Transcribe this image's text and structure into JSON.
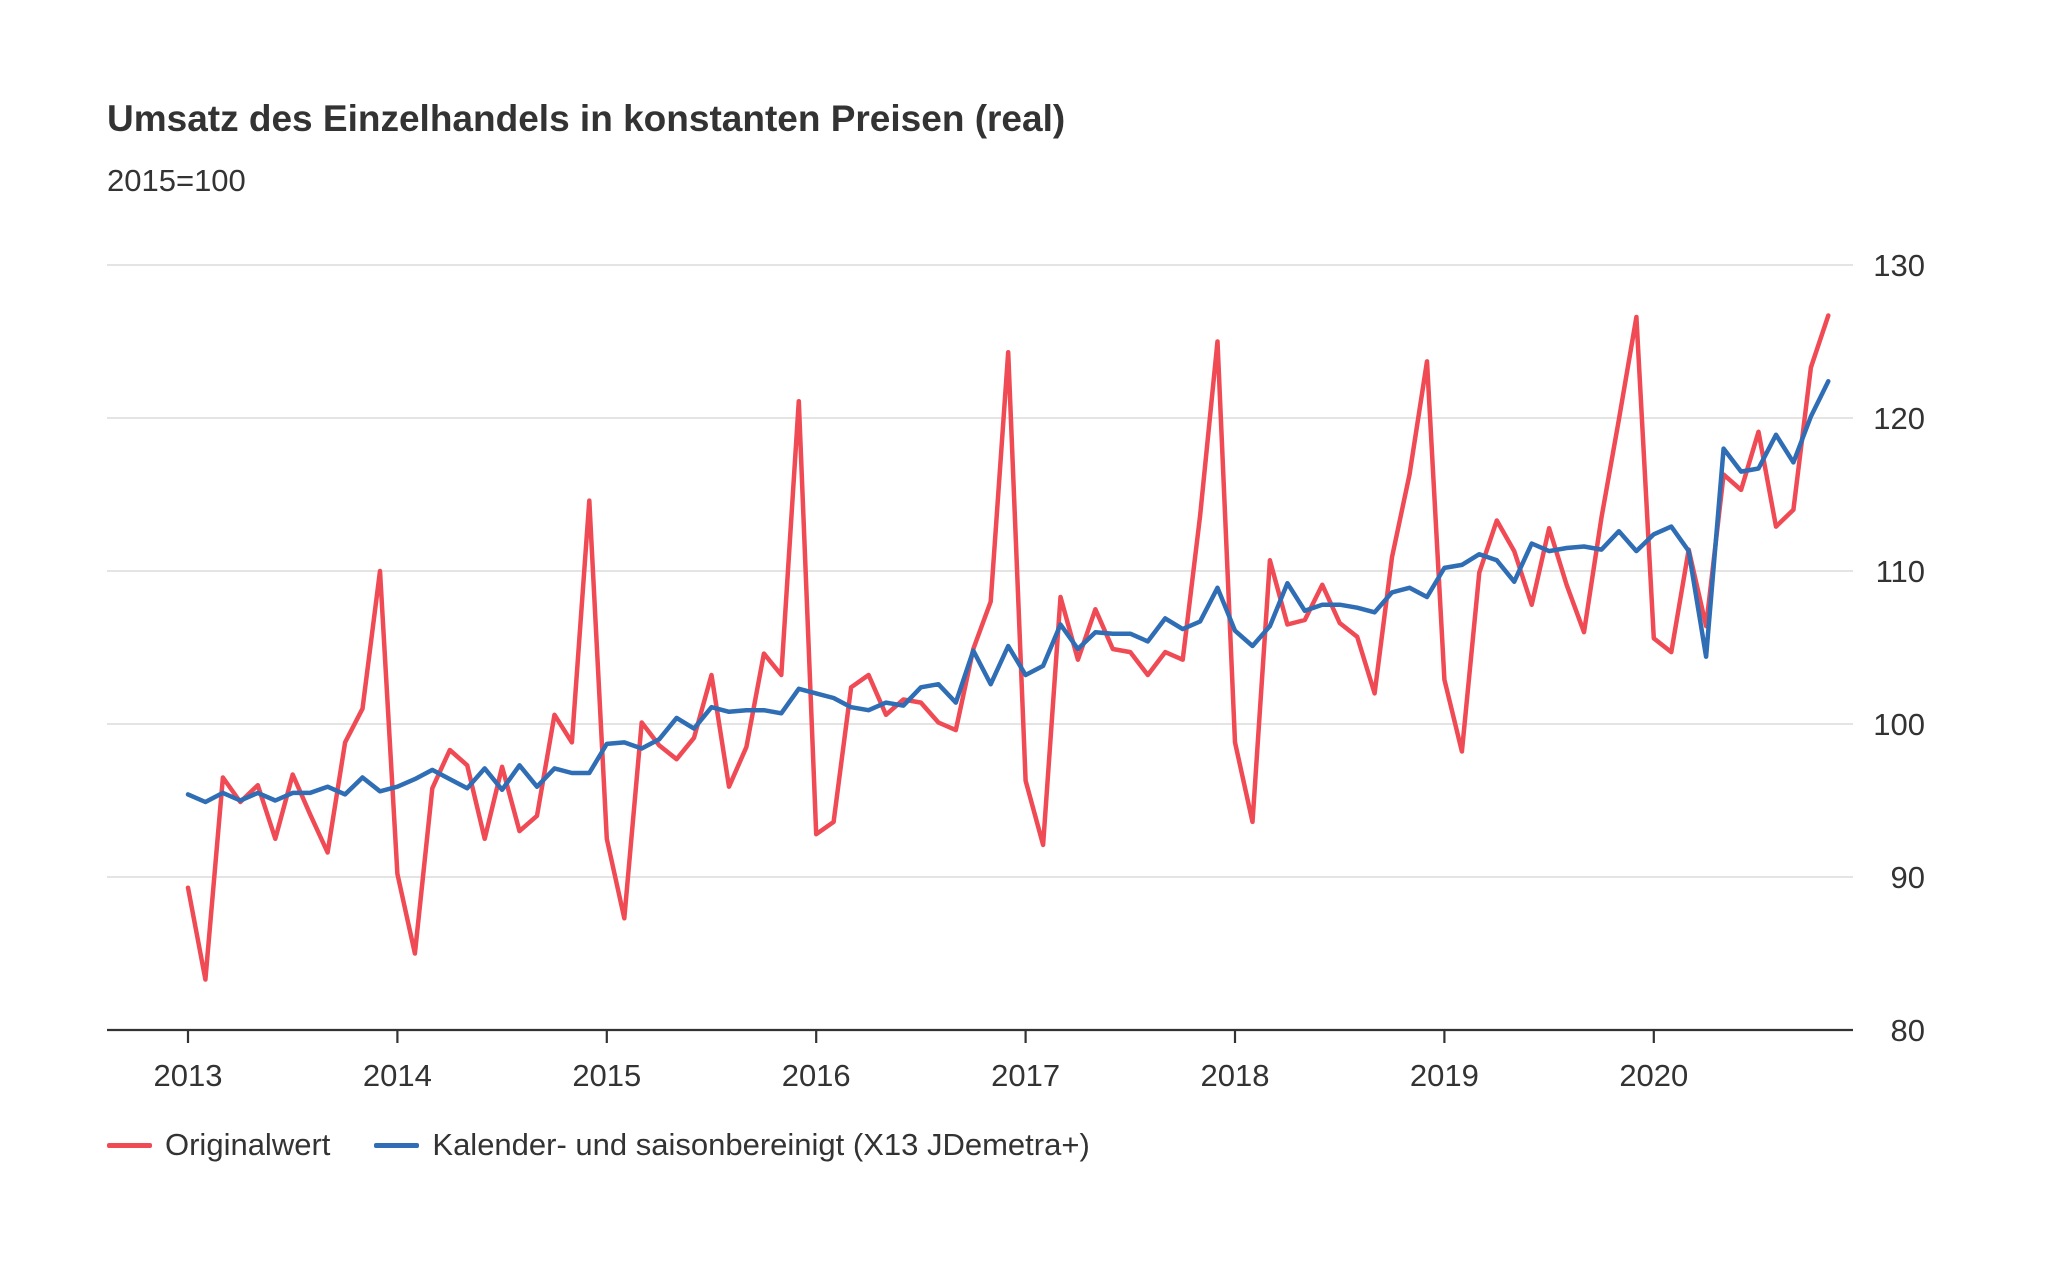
{
  "chart_data": {
    "type": "line",
    "title": "Umsatz des Einzelhandels in konstanten Preisen (real)",
    "subtitle": "2015=100",
    "xlabel": "",
    "ylabel": "",
    "ylim": [
      80,
      130
    ],
    "y_ticks": [
      "80",
      "90",
      "100",
      "110",
      "120",
      "130"
    ],
    "x_ticks": [
      "2013",
      "2014",
      "2015",
      "2016",
      "2017",
      "2018",
      "2019",
      "2020"
    ],
    "x_start": "2013-01",
    "x_end": "2020-11",
    "grid": "horizontal",
    "y_axis_position": "right",
    "legend_placement": "bottom-left",
    "series": [
      {
        "name": "Originalwert",
        "color": "#f04a55",
        "values": [
          89.3,
          83.3,
          96.5,
          94.9,
          96.0,
          92.5,
          96.7,
          94.1,
          91.6,
          98.8,
          101.0,
          110.0,
          90.2,
          85.0,
          95.8,
          98.3,
          97.3,
          92.5,
          97.2,
          93.0,
          94.0,
          100.6,
          98.8,
          114.6,
          92.5,
          87.3,
          100.1,
          98.6,
          97.7,
          99.1,
          103.2,
          95.9,
          98.5,
          104.6,
          103.2,
          121.1,
          92.8,
          93.6,
          102.4,
          103.2,
          100.6,
          101.6,
          101.4,
          100.1,
          99.6,
          104.9,
          108.0,
          124.3,
          96.3,
          92.1,
          108.3,
          104.2,
          107.5,
          104.9,
          104.7,
          103.2,
          104.7,
          104.2,
          113.6,
          125.0,
          98.8,
          93.6,
          110.7,
          106.5,
          106.8,
          109.1,
          106.6,
          105.7,
          102.0,
          110.9,
          116.3,
          123.7,
          102.9,
          98.2,
          109.9,
          113.3,
          111.3,
          107.8,
          112.8,
          109.1,
          106.0,
          113.5,
          119.9,
          126.6,
          105.6,
          104.7,
          111.4,
          106.4,
          116.3,
          115.3,
          119.1,
          112.9,
          114.0,
          123.3,
          126.7
        ]
      },
      {
        "name": "Kalender- und saisonbereinigt (X13 JDemetra+)",
        "color": "#2f6db5",
        "values": [
          95.4,
          94.9,
          95.5,
          95.0,
          95.5,
          95.0,
          95.5,
          95.5,
          95.9,
          95.4,
          96.5,
          95.6,
          95.9,
          96.4,
          97.0,
          96.4,
          95.8,
          97.1,
          95.7,
          97.3,
          95.9,
          97.1,
          96.8,
          96.8,
          98.7,
          98.8,
          98.4,
          99.0,
          100.4,
          99.7,
          101.1,
          100.8,
          100.9,
          100.9,
          100.7,
          102.3,
          102.0,
          101.7,
          101.1,
          100.9,
          101.4,
          101.2,
          102.4,
          102.6,
          101.4,
          104.8,
          102.6,
          105.1,
          103.2,
          103.8,
          106.5,
          104.9,
          106.0,
          105.9,
          105.9,
          105.4,
          106.9,
          106.2,
          106.7,
          108.9,
          106.1,
          105.1,
          106.4,
          109.2,
          107.4,
          107.8,
          107.8,
          107.6,
          107.3,
          108.6,
          108.9,
          108.3,
          110.2,
          110.4,
          111.1,
          110.7,
          109.3,
          111.8,
          111.3,
          111.5,
          111.6,
          111.4,
          112.6,
          111.3,
          112.4,
          112.9,
          111.3,
          104.4,
          118.0,
          116.5,
          116.7,
          118.9,
          117.1,
          120.1,
          122.4
        ]
      }
    ]
  },
  "legend": {
    "items": [
      {
        "label": "Originalwert",
        "color": "#f04a55"
      },
      {
        "label": "Kalender- und saisonbereinigt (X13 JDemetra+)",
        "color": "#2f6db5"
      }
    ]
  }
}
